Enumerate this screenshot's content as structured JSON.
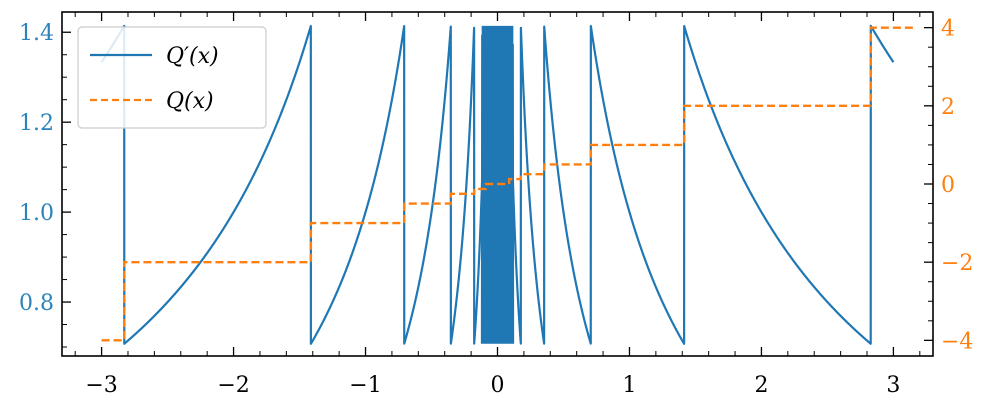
{
  "chart_data": {
    "type": "line",
    "x_ticks": [
      -3,
      -2,
      -1,
      0,
      1,
      2,
      3
    ],
    "x_tick_labels": [
      "−3",
      "−2",
      "−1",
      "0",
      "1",
      "2",
      "3"
    ],
    "xlim": [
      -3.3,
      3.3
    ],
    "left_axis": {
      "ylim": [
        0.68,
        1.445
      ],
      "ticks": [
        0.8,
        1.0,
        1.2,
        1.4
      ],
      "tick_labels": [
        "0.8",
        "1.0",
        "1.2",
        "1.4"
      ],
      "color": "#2b83ba"
    },
    "right_axis": {
      "ylim": [
        -4.4,
        4.4
      ],
      "ticks": [
        -4,
        -2,
        0,
        2,
        4
      ],
      "tick_labels": [
        "−4",
        "−2",
        "0",
        "2",
        "4"
      ],
      "color": "#ff7f0e"
    },
    "legend": {
      "position": "upper-left"
    },
    "grid": false,
    "series": [
      {
        "name": "Q′(x)",
        "axis": "left",
        "color": "#1f77b4",
        "style": "solid",
        "piecewise": [
          {
            "x0": -3.0,
            "x1": -2.8284,
            "y_at_x0": 1.3333,
            "y_at_x1": 1.4142,
            "shape": "increasing"
          },
          {
            "x0": -2.8284,
            "x1": -1.4142,
            "y_at_x0": 0.7071,
            "y_at_x1": 1.4142,
            "shape": "increasing"
          },
          {
            "x0": -1.4142,
            "x1": -0.7071,
            "y_at_x0": 0.7071,
            "y_at_x1": 1.4142,
            "shape": "increasing"
          },
          {
            "x0": -0.7071,
            "x1": -0.3536,
            "y_at_x0": 0.7071,
            "y_at_x1": 1.4142,
            "shape": "increasing"
          },
          {
            "x0": 0.3536,
            "x1": 0.7071,
            "y_at_x0": 1.4142,
            "y_at_x1": 0.7071,
            "shape": "decreasing"
          },
          {
            "x0": 0.7071,
            "x1": 1.4142,
            "y_at_x0": 1.4142,
            "y_at_x1": 0.7071,
            "shape": "decreasing"
          },
          {
            "x0": 1.4142,
            "x1": 2.8284,
            "y_at_x0": 1.4142,
            "y_at_x1": 0.7071,
            "shape": "decreasing"
          },
          {
            "x0": 2.8284,
            "x1": 3.0,
            "y_at_x0": 1.4142,
            "y_at_x1": 1.3333,
            "shape": "decreasing"
          }
        ],
        "oscillation_near_zero": {
          "x_range": [
            -0.3536,
            0.3536
          ],
          "y_range": [
            0.7071,
            1.4142
          ]
        }
      },
      {
        "name": "Q(x)",
        "axis": "right",
        "color": "#ff7f0e",
        "style": "dashed",
        "steps": [
          {
            "x0": -3.0,
            "x1": -2.8284,
            "y": -4
          },
          {
            "x0": -2.8284,
            "x1": -1.4142,
            "y": -2
          },
          {
            "x0": -1.4142,
            "x1": -0.7071,
            "y": -1
          },
          {
            "x0": -0.7071,
            "x1": -0.3536,
            "y": -0.5
          },
          {
            "x0": -0.3536,
            "x1": -0.1768,
            "y": -0.25
          },
          {
            "x0": -0.1768,
            "x1": -0.0884,
            "y": -0.125
          },
          {
            "x0": -0.0884,
            "x1": 0.0884,
            "y": 0
          },
          {
            "x0": 0.0884,
            "x1": 0.1768,
            "y": 0.125
          },
          {
            "x0": 0.1768,
            "x1": 0.3536,
            "y": 0.25
          },
          {
            "x0": 0.3536,
            "x1": 0.7071,
            "y": 0.5
          },
          {
            "x0": 0.7071,
            "x1": 1.4142,
            "y": 1
          },
          {
            "x0": 1.4142,
            "x1": 2.8284,
            "y": 2
          },
          {
            "x0": 2.8284,
            "x1": 3.0,
            "y": 4
          }
        ]
      }
    ]
  }
}
